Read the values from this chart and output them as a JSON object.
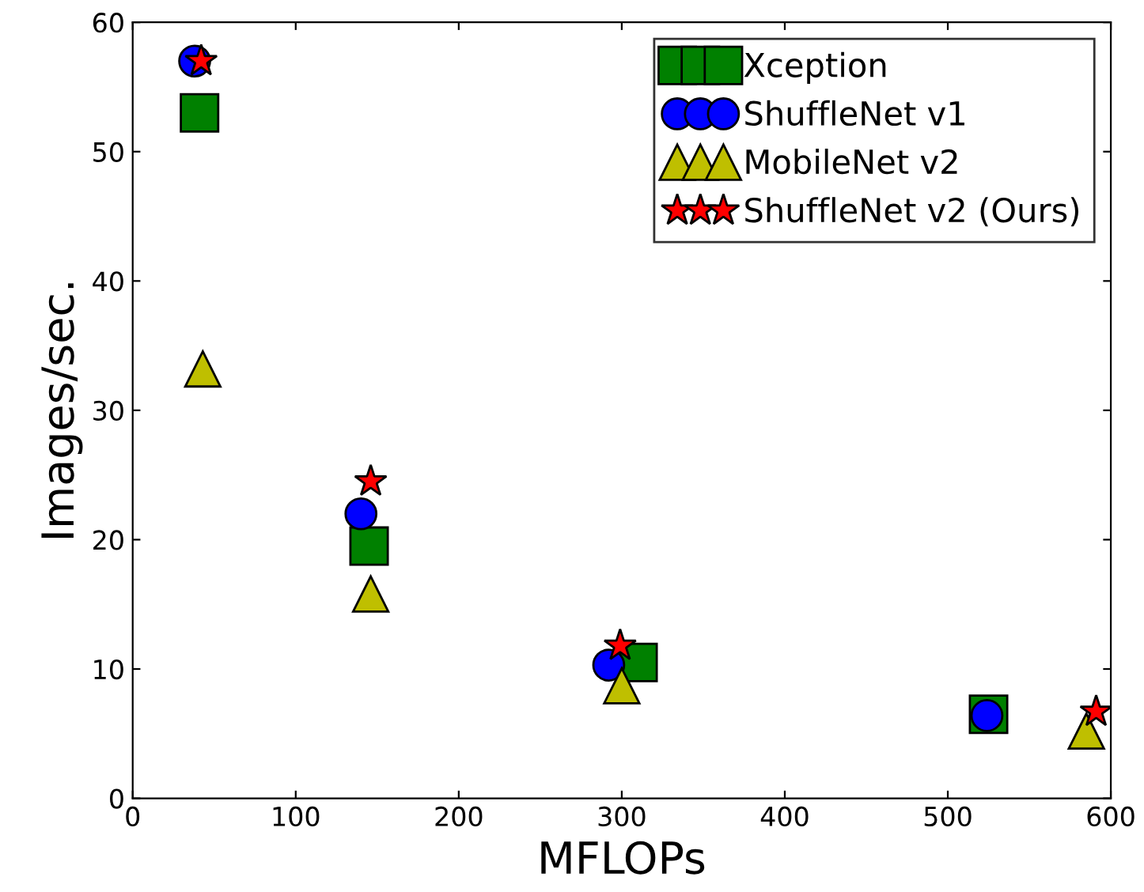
{
  "chart_data": {
    "type": "scatter",
    "xlabel": "MFLOPs",
    "ylabel": "Images/sec.",
    "xlim": [
      0,
      600
    ],
    "xticks": [
      0,
      100,
      200,
      300,
      400,
      500,
      600
    ],
    "ylim": [
      0,
      60
    ],
    "yticks": [
      0,
      10,
      20,
      30,
      40,
      50,
      60
    ],
    "legend": "top right",
    "grid": false,
    "series": [
      {
        "name": "Xception",
        "color": "#008000",
        "marker": "square",
        "x": [
          41,
          145,
          310,
          525
        ],
        "values": [
          53,
          19.5,
          10.5,
          6.5
        ]
      },
      {
        "name": "ShuffleNet v1",
        "color": "#0000ff",
        "marker": "circle",
        "x": [
          38,
          140,
          292,
          524
        ],
        "values": [
          57,
          22,
          10.3,
          6.4
        ]
      },
      {
        "name": "MobileNet v2",
        "color": "#bfbf00",
        "marker": "triangle",
        "x": [
          43,
          146,
          300,
          585
        ],
        "values": [
          33.2,
          15.8,
          8.7,
          5.2
        ]
      },
      {
        "name": "ShuffleNet v2 (Ours)",
        "color": "#ff0000",
        "marker": "star",
        "x": [
          42,
          146,
          299,
          591
        ],
        "values": [
          57,
          24.5,
          11.8,
          6.7
        ]
      }
    ]
  }
}
